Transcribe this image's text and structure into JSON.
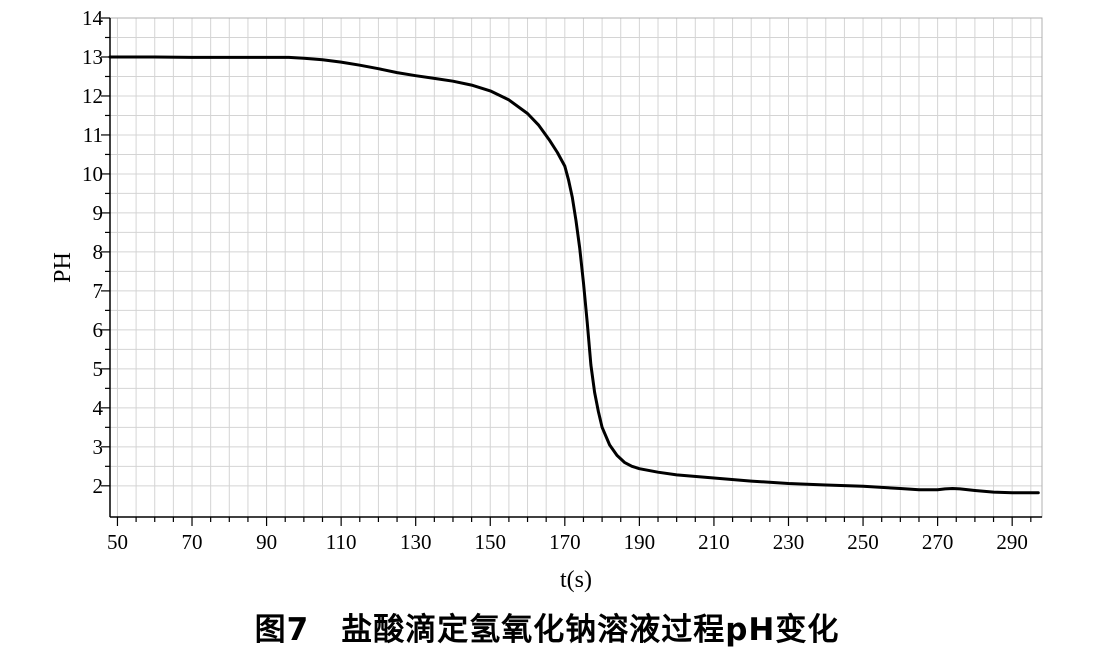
{
  "chart_data": {
    "type": "line",
    "title": "",
    "xlabel": "t(s)",
    "ylabel": "PH",
    "xlim": [
      48,
      298
    ],
    "ylim": [
      1.2,
      14
    ],
    "grid": true,
    "x_ticks": [
      50,
      70,
      90,
      110,
      130,
      150,
      170,
      190,
      210,
      230,
      250,
      270,
      290
    ],
    "y_ticks": [
      2,
      3,
      4,
      5,
      6,
      7,
      8,
      9,
      10,
      11,
      12,
      13,
      14
    ],
    "series": [
      {
        "color": "#000000",
        "x": [
          48,
          60,
          70,
          80,
          90,
          96,
          100,
          105,
          110,
          115,
          120,
          125,
          130,
          135,
          140,
          145,
          150,
          155,
          160,
          163,
          166,
          168,
          170,
          171,
          172,
          173,
          174,
          175,
          176,
          177,
          178,
          179,
          180,
          182,
          184,
          186,
          188,
          190,
          195,
          200,
          210,
          220,
          230,
          240,
          250,
          255,
          260,
          265,
          270,
          272,
          274,
          276,
          280,
          285,
          290,
          297
        ],
        "y": [
          13.0,
          13.0,
          12.99,
          12.99,
          12.99,
          12.99,
          12.97,
          12.93,
          12.87,
          12.79,
          12.7,
          12.6,
          12.52,
          12.45,
          12.38,
          12.28,
          12.13,
          11.9,
          11.55,
          11.25,
          10.85,
          10.55,
          10.2,
          9.85,
          9.4,
          8.8,
          8.1,
          7.2,
          6.2,
          5.1,
          4.4,
          3.9,
          3.5,
          3.05,
          2.78,
          2.6,
          2.5,
          2.44,
          2.35,
          2.28,
          2.2,
          2.12,
          2.06,
          2.02,
          1.99,
          1.96,
          1.93,
          1.9,
          1.9,
          1.92,
          1.93,
          1.92,
          1.88,
          1.84,
          1.82,
          1.82
        ]
      }
    ]
  },
  "caption": "图7　盐酸滴定氢氧化钠溶液过程pH变化"
}
